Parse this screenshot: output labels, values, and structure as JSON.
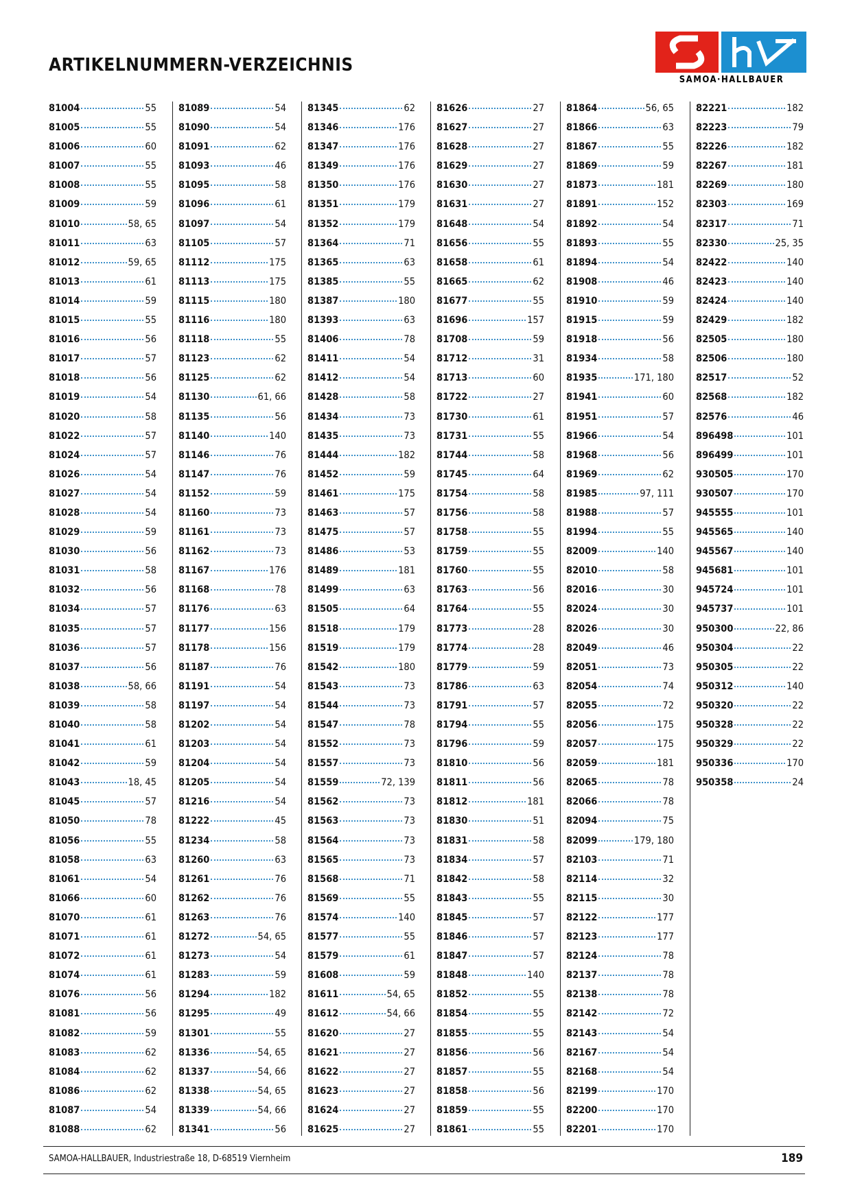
{
  "header": {
    "title": "ARTIKELNUMMERN-VERZEICHNIS",
    "logo_text": "SAMOA·HALLBAUER"
  },
  "columns": [
    [
      [
        "81004",
        "55"
      ],
      [
        "81005",
        "55"
      ],
      [
        "81006",
        "60"
      ],
      [
        "81007",
        "55"
      ],
      [
        "81008",
        "55"
      ],
      [
        "81009",
        "59"
      ],
      [
        "81010",
        "58, 65"
      ],
      [
        "81011",
        "63"
      ],
      [
        "81012",
        "59, 65"
      ],
      [
        "81013",
        "61"
      ],
      [
        "81014",
        "59"
      ],
      [
        "81015",
        "55"
      ],
      [
        "81016",
        "56"
      ],
      [
        "81017",
        "57"
      ],
      [
        "81018",
        "56"
      ],
      [
        "81019",
        "54"
      ],
      [
        "81020",
        "58"
      ],
      [
        "81022",
        "57"
      ],
      [
        "81024",
        "57"
      ],
      [
        "81026",
        "54"
      ],
      [
        "81027",
        "54"
      ],
      [
        "81028",
        "54"
      ],
      [
        "81029",
        "59"
      ],
      [
        "81030",
        "56"
      ],
      [
        "81031",
        "58"
      ],
      [
        "81032",
        "56"
      ],
      [
        "81034",
        "57"
      ],
      [
        "81035",
        "57"
      ],
      [
        "81036",
        "57"
      ],
      [
        "81037",
        "56"
      ],
      [
        "81038",
        "58, 66"
      ],
      [
        "81039",
        "58"
      ],
      [
        "81040",
        "58"
      ],
      [
        "81041",
        "61"
      ],
      [
        "81042",
        "59"
      ],
      [
        "81043",
        "18, 45"
      ],
      [
        "81045",
        "57"
      ],
      [
        "81050",
        "78"
      ],
      [
        "81056",
        "55"
      ],
      [
        "81058",
        "63"
      ],
      [
        "81061",
        "54"
      ],
      [
        "81066",
        "60"
      ],
      [
        "81070",
        "61"
      ],
      [
        "81071",
        "61"
      ],
      [
        "81072",
        "61"
      ],
      [
        "81074",
        "61"
      ],
      [
        "81076",
        "56"
      ],
      [
        "81081",
        "56"
      ],
      [
        "81082",
        "59"
      ],
      [
        "81083",
        "62"
      ],
      [
        "81084",
        "62"
      ],
      [
        "81086",
        "62"
      ],
      [
        "81087",
        "54"
      ],
      [
        "81088",
        "62"
      ]
    ],
    [
      [
        "81089",
        "54"
      ],
      [
        "81090",
        "54"
      ],
      [
        "81091",
        "62"
      ],
      [
        "81093",
        "46"
      ],
      [
        "81095",
        "58"
      ],
      [
        "81096",
        "61"
      ],
      [
        "81097",
        "54"
      ],
      [
        "81105",
        "57"
      ],
      [
        "81112",
        "175"
      ],
      [
        "81113",
        "175"
      ],
      [
        "81115",
        "180"
      ],
      [
        "81116",
        "180"
      ],
      [
        "81118",
        "55"
      ],
      [
        "81123",
        "62"
      ],
      [
        "81125",
        "62"
      ],
      [
        "81130",
        "61, 66"
      ],
      [
        "81135",
        "56"
      ],
      [
        "81140",
        "140"
      ],
      [
        "81146",
        "76"
      ],
      [
        "81147",
        "76"
      ],
      [
        "81152",
        "59"
      ],
      [
        "81160",
        "73"
      ],
      [
        "81161",
        "73"
      ],
      [
        "81162",
        "73"
      ],
      [
        "81167",
        "176"
      ],
      [
        "81168",
        "78"
      ],
      [
        "81176",
        "63"
      ],
      [
        "81177",
        "156"
      ],
      [
        "81178",
        "156"
      ],
      [
        "81187",
        "76"
      ],
      [
        "81191",
        "54"
      ],
      [
        "81197",
        "54"
      ],
      [
        "81202",
        "54"
      ],
      [
        "81203",
        "54"
      ],
      [
        "81204",
        "54"
      ],
      [
        "81205",
        "54"
      ],
      [
        "81216",
        "54"
      ],
      [
        "81222",
        "45"
      ],
      [
        "81234",
        "58"
      ],
      [
        "81260",
        "63"
      ],
      [
        "81261",
        "76"
      ],
      [
        "81262",
        "76"
      ],
      [
        "81263",
        "76"
      ],
      [
        "81272",
        "54, 65"
      ],
      [
        "81273",
        "54"
      ],
      [
        "81283",
        "59"
      ],
      [
        "81294",
        "182"
      ],
      [
        "81295",
        "49"
      ],
      [
        "81301",
        "55"
      ],
      [
        "81336",
        "54, 65"
      ],
      [
        "81337",
        "54, 66"
      ],
      [
        "81338",
        "54, 65"
      ],
      [
        "81339",
        "54, 66"
      ],
      [
        "81341",
        "56"
      ]
    ],
    [
      [
        "81345",
        "62"
      ],
      [
        "81346",
        "176"
      ],
      [
        "81347",
        "176"
      ],
      [
        "81349",
        "176"
      ],
      [
        "81350",
        "176"
      ],
      [
        "81351",
        "179"
      ],
      [
        "81352",
        "179"
      ],
      [
        "81364",
        "71"
      ],
      [
        "81365",
        "63"
      ],
      [
        "81385",
        "55"
      ],
      [
        "81387",
        "180"
      ],
      [
        "81393",
        "63"
      ],
      [
        "81406",
        "78"
      ],
      [
        "81411",
        "54"
      ],
      [
        "81412",
        "54"
      ],
      [
        "81428",
        "58"
      ],
      [
        "81434",
        "73"
      ],
      [
        "81435",
        "73"
      ],
      [
        "81444",
        "182"
      ],
      [
        "81452",
        "59"
      ],
      [
        "81461",
        "175"
      ],
      [
        "81463",
        "57"
      ],
      [
        "81475",
        "57"
      ],
      [
        "81486",
        "53"
      ],
      [
        "81489",
        "181"
      ],
      [
        "81499",
        "63"
      ],
      [
        "81505",
        "64"
      ],
      [
        "81518",
        "179"
      ],
      [
        "81519",
        "179"
      ],
      [
        "81542",
        "180"
      ],
      [
        "81543",
        "73"
      ],
      [
        "81544",
        "73"
      ],
      [
        "81547",
        "78"
      ],
      [
        "81552",
        "73"
      ],
      [
        "81557",
        "73"
      ],
      [
        "81559",
        "72, 139"
      ],
      [
        "81562",
        "73"
      ],
      [
        "81563",
        "73"
      ],
      [
        "81564",
        "73"
      ],
      [
        "81565",
        "73"
      ],
      [
        "81568",
        "71"
      ],
      [
        "81569",
        "55"
      ],
      [
        "81574",
        "140"
      ],
      [
        "81577",
        "55"
      ],
      [
        "81579",
        "61"
      ],
      [
        "81608",
        "59"
      ],
      [
        "81611",
        "54, 65"
      ],
      [
        "81612",
        "54, 66"
      ],
      [
        "81620",
        "27"
      ],
      [
        "81621",
        "27"
      ],
      [
        "81622",
        "27"
      ],
      [
        "81623",
        "27"
      ],
      [
        "81624",
        "27"
      ],
      [
        "81625",
        "27"
      ]
    ],
    [
      [
        "81626",
        "27"
      ],
      [
        "81627",
        "27"
      ],
      [
        "81628",
        "27"
      ],
      [
        "81629",
        "27"
      ],
      [
        "81630",
        "27"
      ],
      [
        "81631",
        "27"
      ],
      [
        "81648",
        "54"
      ],
      [
        "81656",
        "55"
      ],
      [
        "81658",
        "61"
      ],
      [
        "81665",
        "62"
      ],
      [
        "81677",
        "55"
      ],
      [
        "81696",
        "157"
      ],
      [
        "81708",
        "59"
      ],
      [
        "81712",
        "31"
      ],
      [
        "81713",
        "60"
      ],
      [
        "81722",
        "27"
      ],
      [
        "81730",
        "61"
      ],
      [
        "81731",
        "55"
      ],
      [
        "81744",
        "58"
      ],
      [
        "81745",
        "64"
      ],
      [
        "81754",
        "58"
      ],
      [
        "81756",
        "58"
      ],
      [
        "81758",
        "55"
      ],
      [
        "81759",
        "55"
      ],
      [
        "81760",
        "55"
      ],
      [
        "81763",
        "56"
      ],
      [
        "81764",
        "55"
      ],
      [
        "81773",
        "28"
      ],
      [
        "81774",
        "28"
      ],
      [
        "81779",
        "59"
      ],
      [
        "81786",
        "63"
      ],
      [
        "81791",
        "57"
      ],
      [
        "81794",
        "55"
      ],
      [
        "81796",
        "59"
      ],
      [
        "81810",
        "56"
      ],
      [
        "81811",
        "56"
      ],
      [
        "81812",
        "181"
      ],
      [
        "81830",
        "51"
      ],
      [
        "81831",
        "58"
      ],
      [
        "81834",
        "57"
      ],
      [
        "81842",
        "58"
      ],
      [
        "81843",
        "55"
      ],
      [
        "81845",
        "57"
      ],
      [
        "81846",
        "57"
      ],
      [
        "81847",
        "57"
      ],
      [
        "81848",
        "140"
      ],
      [
        "81852",
        "55"
      ],
      [
        "81854",
        "55"
      ],
      [
        "81855",
        "55"
      ],
      [
        "81856",
        "56"
      ],
      [
        "81857",
        "55"
      ],
      [
        "81858",
        "56"
      ],
      [
        "81859",
        "55"
      ],
      [
        "81861",
        "55"
      ]
    ],
    [
      [
        "81864",
        "56, 65"
      ],
      [
        "81866",
        "63"
      ],
      [
        "81867",
        "55"
      ],
      [
        "81869",
        "59"
      ],
      [
        "81873",
        "181"
      ],
      [
        "81891",
        "152"
      ],
      [
        "81892",
        "54"
      ],
      [
        "81893",
        "55"
      ],
      [
        "81894",
        "54"
      ],
      [
        "81908",
        "46"
      ],
      [
        "81910",
        "59"
      ],
      [
        "81915",
        "59"
      ],
      [
        "81918",
        "56"
      ],
      [
        "81934",
        "58"
      ],
      [
        "81935",
        "171, 180"
      ],
      [
        "81941",
        "60"
      ],
      [
        "81951",
        "57"
      ],
      [
        "81966",
        "54"
      ],
      [
        "81968",
        "56"
      ],
      [
        "81969",
        "62"
      ],
      [
        "81985",
        "97, 111"
      ],
      [
        "81988",
        "57"
      ],
      [
        "81994",
        "55"
      ],
      [
        "82009",
        "140"
      ],
      [
        "82010",
        "58"
      ],
      [
        "82016",
        "30"
      ],
      [
        "82024",
        "30"
      ],
      [
        "82026",
        "30"
      ],
      [
        "82049",
        "46"
      ],
      [
        "82051",
        "73"
      ],
      [
        "82054",
        "74"
      ],
      [
        "82055",
        "72"
      ],
      [
        "82056",
        "175"
      ],
      [
        "82057",
        "175"
      ],
      [
        "82059",
        "181"
      ],
      [
        "82065",
        "78"
      ],
      [
        "82066",
        "78"
      ],
      [
        "82094",
        "75"
      ],
      [
        "82099",
        "179, 180"
      ],
      [
        "82103",
        "71"
      ],
      [
        "82114",
        "32"
      ],
      [
        "82115",
        "30"
      ],
      [
        "82122",
        "177"
      ],
      [
        "82123",
        "177"
      ],
      [
        "82124",
        "78"
      ],
      [
        "82137",
        "78"
      ],
      [
        "82138",
        "78"
      ],
      [
        "82142",
        "72"
      ],
      [
        "82143",
        "54"
      ],
      [
        "82167",
        "54"
      ],
      [
        "82168",
        "54"
      ],
      [
        "82199",
        "170"
      ],
      [
        "82200",
        "170"
      ],
      [
        "82201",
        "170"
      ]
    ],
    [
      [
        "82221",
        "182"
      ],
      [
        "82223",
        "79"
      ],
      [
        "82226",
        "182"
      ],
      [
        "82267",
        "181"
      ],
      [
        "82269",
        "180"
      ],
      [
        "82303",
        "169"
      ],
      [
        "82317",
        "71"
      ],
      [
        "82330",
        "25, 35"
      ],
      [
        "82422",
        "140"
      ],
      [
        "82423",
        "140"
      ],
      [
        "82424",
        "140"
      ],
      [
        "82429",
        "182"
      ],
      [
        "82505",
        "180"
      ],
      [
        "82506",
        "180"
      ],
      [
        "82517",
        "52"
      ],
      [
        "82568",
        "182"
      ],
      [
        "82576",
        "46"
      ],
      [
        "896498",
        "101"
      ],
      [
        "896499",
        "101"
      ],
      [
        "930505",
        "170"
      ],
      [
        "930507",
        "170"
      ],
      [
        "945555",
        "101"
      ],
      [
        "945565",
        "140"
      ],
      [
        "945567",
        "140"
      ],
      [
        "945681",
        "101"
      ],
      [
        "945724",
        "101"
      ],
      [
        "945737",
        "101"
      ],
      [
        "950300",
        "22, 86"
      ],
      [
        "950304",
        "22"
      ],
      [
        "950305",
        "22"
      ],
      [
        "950312",
        "140"
      ],
      [
        "950320",
        "22"
      ],
      [
        "950328",
        "22"
      ],
      [
        "950329",
        "22"
      ],
      [
        "950336",
        "170"
      ],
      [
        "950358",
        "24"
      ]
    ]
  ],
  "footer": {
    "address": "SAMOA-HALLBAUER, Industriestraße 18, D-68519 Viernheim",
    "page_number": "189"
  }
}
